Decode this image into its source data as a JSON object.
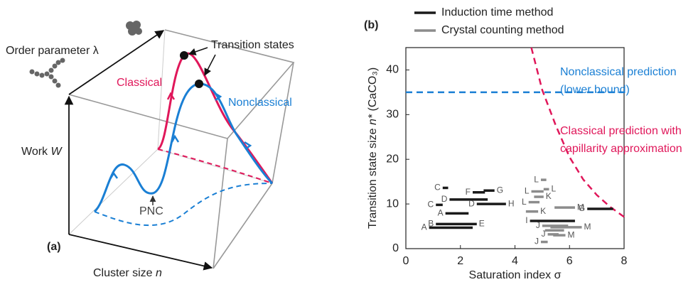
{
  "panel_a": {
    "label": "(a)",
    "order_parameter": "Order parameter λ",
    "transition_states": "Transition states",
    "classical": "Classical",
    "nonclassical": "Nonclassical",
    "work": {
      "text": "Work",
      "variable": "W"
    },
    "pnc": "PNC",
    "cluster_size": {
      "text": "Cluster size",
      "variable": "n"
    }
  },
  "chart_data": {
    "type": "segment",
    "panel_label": "(b)",
    "xlabel": "Saturation index σ",
    "ylabel": {
      "text": "Transition state size",
      "variable": "n*",
      "unit": "(CaCO₃)"
    },
    "xlim": [
      0,
      8
    ],
    "ylim": [
      0,
      45
    ],
    "xticks": [
      0,
      2,
      4,
      6,
      8
    ],
    "yticks": [
      0,
      10,
      20,
      30,
      40
    ],
    "series": [
      {
        "name": "Induction time method",
        "color": "#1a1a1a",
        "segments": [
          {
            "x": [
              1.35,
              1.55
            ],
            "y": 13.6,
            "left_label": "C"
          },
          {
            "x": [
              1.6,
              3.0
            ],
            "y": 11.0,
            "left_label": "D"
          },
          {
            "x": [
              2.45,
              2.9
            ],
            "y": 12.6,
            "left_label": "F"
          },
          {
            "x": [
              2.85,
              3.25
            ],
            "y": 13.0,
            "right_label": "G"
          },
          {
            "x": [
              1.1,
              1.35
            ],
            "y": 9.8,
            "left_label": "C"
          },
          {
            "x": [
              2.6,
              3.67
            ],
            "y": 10.0,
            "left_label": "D",
            "right_label": "H"
          },
          {
            "x": [
              1.45,
              2.3
            ],
            "y": 7.9,
            "left_label": "A"
          },
          {
            "x": [
              1.1,
              2.6
            ],
            "y": 5.5,
            "left_label": "B",
            "right_label": "E"
          },
          {
            "x": [
              0.85,
              2.45
            ],
            "y": 4.7,
            "left_label": "A"
          },
          {
            "x": [
              4.55,
              6.2
            ],
            "y": 6.2,
            "left_label": "I"
          },
          {
            "x": [
              6.65,
              7.6
            ],
            "y": 8.9,
            "left_label": "G"
          }
        ]
      },
      {
        "name": "Crystal counting method",
        "color": "#8c8c8c",
        "segments": [
          {
            "x": [
              4.95,
              5.15
            ],
            "y": 15.4,
            "left_label": "L"
          },
          {
            "x": [
              4.6,
              5.05
            ],
            "y": 12.8,
            "left_label": "L"
          },
          {
            "x": [
              5.05,
              5.25
            ],
            "y": 13.3,
            "right_label": "L"
          },
          {
            "x": [
              4.7,
              5.05
            ],
            "y": 11.6,
            "right_label": "K"
          },
          {
            "x": [
              4.5,
              4.9
            ],
            "y": 10.4,
            "left_label": "L"
          },
          {
            "x": [
              5.45,
              6.2
            ],
            "y": 9.2,
            "right_label": "M"
          },
          {
            "x": [
              4.4,
              4.85
            ],
            "y": 8.3,
            "right_label": "K"
          },
          {
            "x": [
              5.0,
              5.95
            ],
            "y": 5.1,
            "left_label": "J"
          },
          {
            "x": [
              5.3,
              6.45
            ],
            "y": 4.8,
            "right_label": "M"
          },
          {
            "x": [
              5.1,
              5.8
            ],
            "y": 4.1
          },
          {
            "x": [
              5.2,
              5.6
            ],
            "y": 3.2,
            "left_label": "J"
          },
          {
            "x": [
              5.4,
              5.85
            ],
            "y": 3.0,
            "right_label": "M"
          },
          {
            "x": [
              4.95,
              5.2
            ],
            "y": 1.5,
            "left_label": "J"
          }
        ]
      }
    ],
    "lines": [
      {
        "color": "#1a7fd4",
        "dashed": true,
        "x": [
          0,
          8
        ],
        "y": [
          35,
          35
        ],
        "annotation": [
          "Nonclassical prediction",
          "(lower bound)"
        ]
      },
      {
        "color": "#e0175a",
        "dashed": true,
        "x": [
          4.6,
          5,
          5.5,
          6,
          6.5,
          7,
          7.5,
          8
        ],
        "y": [
          45,
          35.5,
          27.5,
          20.5,
          15.5,
          12,
          9.3,
          7.1
        ],
        "annotation": [
          "Classical prediction with",
          "capillarity approximation"
        ]
      }
    ]
  }
}
